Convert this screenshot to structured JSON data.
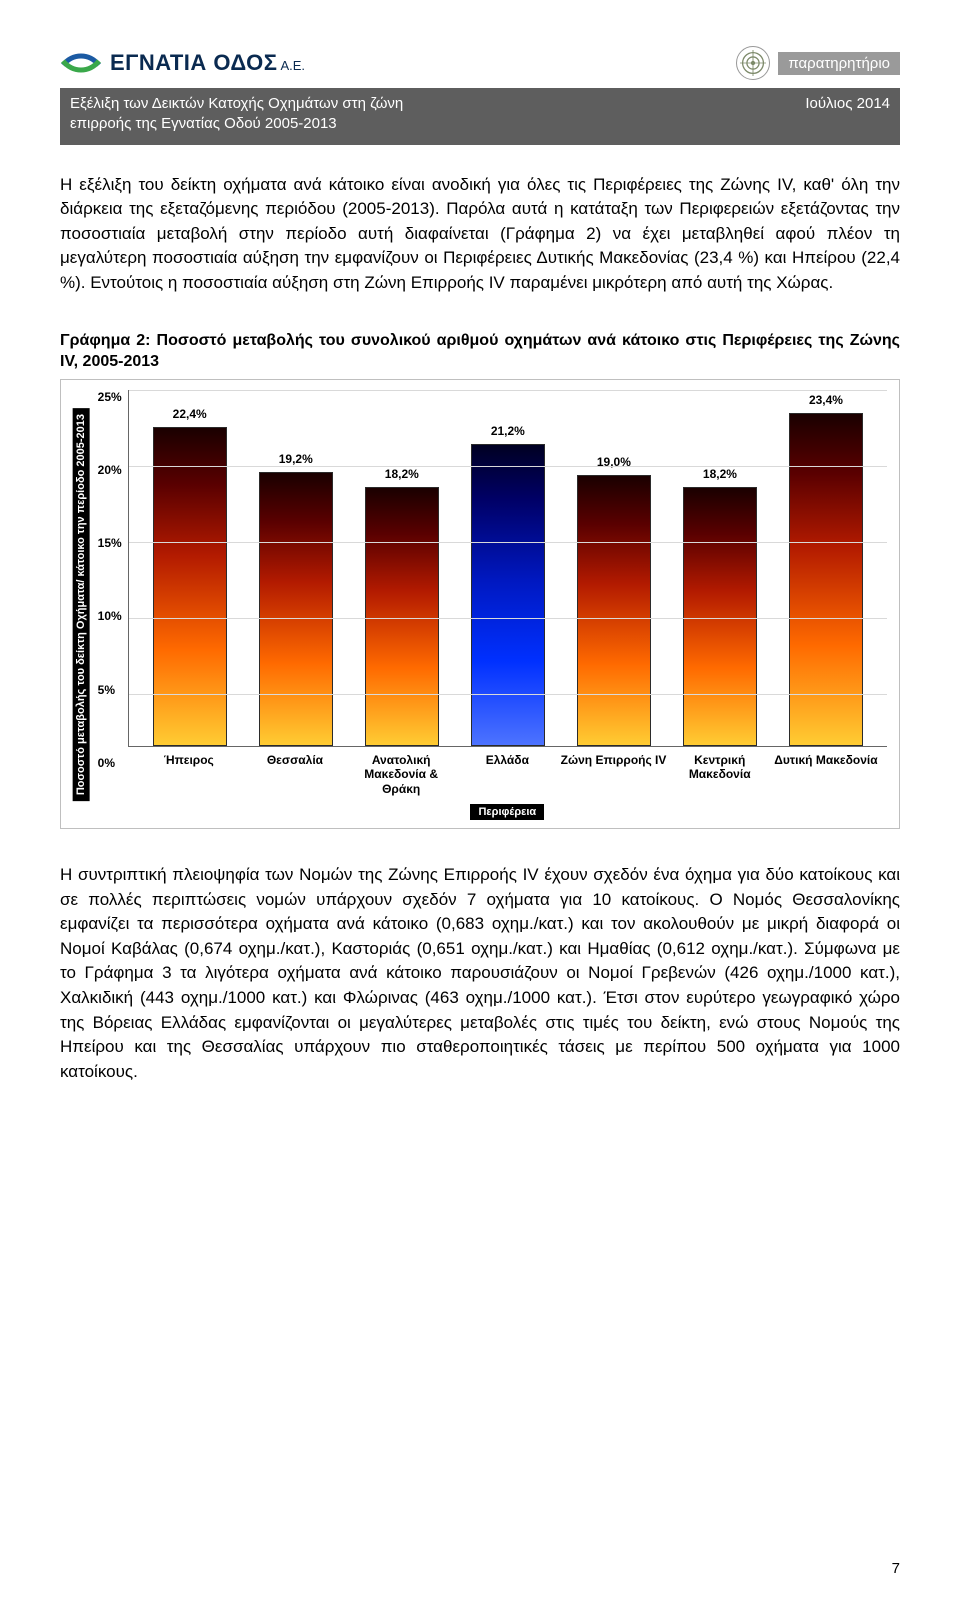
{
  "header": {
    "logo_text": "ΕΓΝΑΤΙΑ ΟΔΟΣ",
    "logo_suffix": "Α.Ε.",
    "badge": "παρατηρητήριο",
    "title_line1": "Εξέλιξη των Δεικτών Κατοχής Οχημάτων στη ζώνη",
    "title_line2": "επιρροής της Εγνατίας Οδού 2005-2013",
    "date": "Ιούλιος 2014"
  },
  "paragraph1": "Η εξέλιξη του δείκτη οχήματα ανά κάτοικο είναι ανοδική για όλες τις Περιφέρειες της Ζώνης IV, καθ' όλη την διάρκεια της εξεταζόμενης περιόδου (2005-2013). Παρόλα αυτά η κατάταξη των Περιφερειών εξετάζοντας την ποσοστιαία μεταβολή στην περίοδο αυτή διαφαίνεται (Γράφημα 2) να έχει μεταβληθεί αφού πλέον τη μεγαλύτερη ποσοστιαία αύξηση την εμφανίζουν οι Περιφέρειες Δυτικής Μακεδονίας (23,4 %) και Ηπείρου (22,4 %). Εντούτοις η ποσοστιαία αύξηση στη Ζώνη Επιρροής IV παραμένει μικρότερη από αυτή της Χώρας.",
  "chart": {
    "caption": "Γράφημα 2: Ποσοστό μεταβολής του συνολικού αριθμού οχημάτων ανά κάτοικο στις Περιφέρειες της Ζώνης IV, 2005-2013",
    "type": "bar",
    "y_label": "Ποσοστό μεταβολής του δείκτη Οχήματα/ κάτοικο την περίοδο 2005-2013",
    "x_label": "Περιφέρεια",
    "ylim": [
      0,
      25
    ],
    "ytick_step": 5,
    "yticks": [
      "25%",
      "20%",
      "15%",
      "10%",
      "5%",
      "0%"
    ],
    "grid_color": "#d9d9d9",
    "border_color": "#bfbfbf",
    "background_color": "#ffffff",
    "label_fontsize": 11,
    "tick_fontsize": 12,
    "value_fontsize": 12,
    "bar_width": 0.7,
    "categories": [
      "Ήπειρος",
      "Θεσσαλία",
      "Ανατολική Μακεδονία & Θράκη",
      "Ελλάδα",
      "Ζώνη Επιρροής IV",
      "Κεντρική Μακεδονία",
      "Δυτική Μακεδονία"
    ],
    "values": [
      22.4,
      19.2,
      18.2,
      21.2,
      19.0,
      18.2,
      23.4
    ],
    "value_labels": [
      "22,4%",
      "19,2%",
      "18,2%",
      "21,2%",
      "19,0%",
      "18,2%",
      "23,4%"
    ],
    "bar_style": [
      "orange",
      "orange",
      "orange",
      "blue",
      "orange",
      "orange",
      "orange"
    ],
    "orange_gradient": [
      "#1a0000",
      "#5a0000",
      "#b21a00",
      "#ff6a00",
      "#ffcc33"
    ],
    "blue_gradient": [
      "#000022",
      "#000066",
      "#0018c0",
      "#0030ff",
      "#4d73ff"
    ]
  },
  "paragraph2": "Η συντριπτική πλειοψηφία των Νομών της Ζώνης Επιρροής IV έχουν σχεδόν ένα όχημα για δύο κατοίκους και σε πολλές περιπτώσεις νομών υπάρχουν σχεδόν 7 οχήματα για 10 κατοίκους. Ο Νομός Θεσσαλονίκης εμφανίζει τα περισσότερα οχήματα ανά κάτοικο (0,683 οχημ./κατ.) και τον ακολουθούν με μικρή διαφορά οι Νομοί Καβάλας (0,674 οχημ./κατ.), Καστοριάς (0,651 οχημ./κατ.) και Ημαθίας (0,612 οχημ./κατ.). Σύμφωνα με το Γράφημα 3 τα λιγότερα οχήματα ανά κάτοικο παρουσιάζουν οι Νομοί Γρεβενών (426 οχημ./1000 κατ.), Χαλκιδική (443 οχημ./1000 κατ.) και Φλώρινας (463 οχημ./1000 κατ.). Έτσι στον ευρύτερο γεωγραφικό χώρο της Βόρειας Ελλάδας εμφανίζονται οι μεγαλύτερες μεταβολές στις τιμές του δείκτη, ενώ στους Νομούς της Ηπείρου και της Θεσσαλίας υπάρχουν πιο σταθεροποιητικές τάσεις με περίπου 500 οχήματα για 1000 κατοίκους.",
  "page_number": "7"
}
